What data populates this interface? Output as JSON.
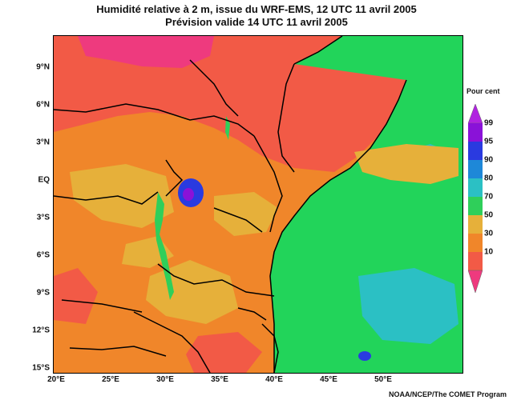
{
  "title": {
    "line1": "Humidité relative à 2 m, issue du WRF-EMS, 12 UTC 11 avril 2005",
    "line2": "Prévision valide 14 UTC 11 avril 2005"
  },
  "map": {
    "lat_labels": [
      "9°N",
      "6°N",
      "3°N",
      "EQ",
      "3°S",
      "6°S",
      "9°S",
      "12°S",
      "15°S"
    ],
    "lon_labels": [
      "20°E",
      "25°E",
      "30°E",
      "35°E",
      "40°E",
      "45°E",
      "50°E"
    ],
    "field_colors": {
      "p10": "#ee3a7e",
      "p30": "#f25a46",
      "p50": "#f0862a",
      "p70": "#e6b03a",
      "p80": "#2fcf5a",
      "p90": "#2bc0c4",
      "p95": "#2a3ae0",
      "p99": "#8a12d8",
      "water": "#22d45a",
      "border": "#000000"
    }
  },
  "legend": {
    "title": "Pour cent",
    "ticks": [
      "99",
      "95",
      "90",
      "80",
      "70",
      "50",
      "30",
      "10"
    ]
  },
  "credit": "NOAA/NCEP/The COMET Program"
}
